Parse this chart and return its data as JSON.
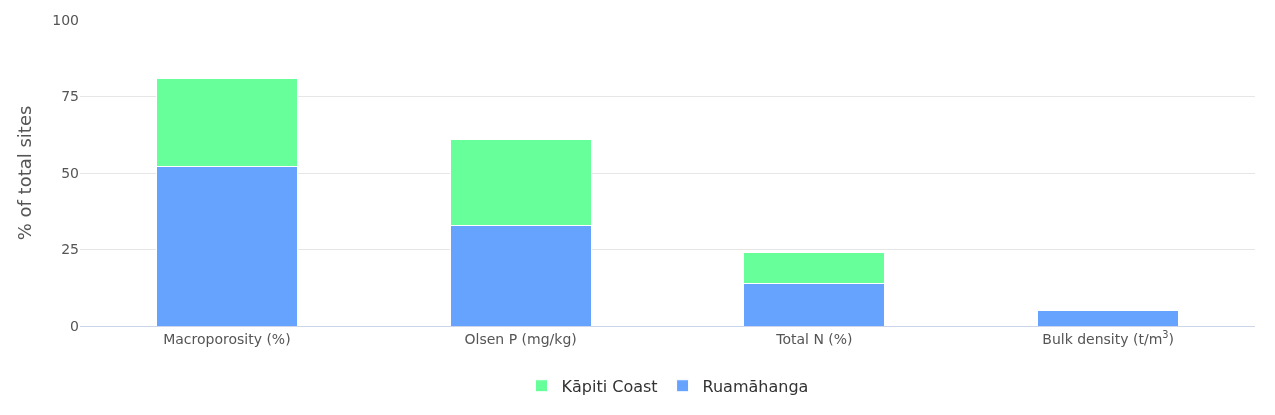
{
  "chart_data": {
    "type": "bar",
    "stacked": true,
    "ylabel": "% of total sites",
    "categories": [
      "Macroporosity (%)",
      "Olsen P (mg/kg)",
      "Total N (%)",
      "Bulk density (t/m$^{3}$)"
    ],
    "series": [
      {
        "name": "Ruamāhanga",
        "color": "#66a3ff",
        "values": [
          52,
          33,
          14,
          5
        ]
      },
      {
        "name": "Kāpiti Coast",
        "color": "#66ff99",
        "values": [
          29,
          28,
          10,
          null
        ]
      }
    ],
    "ylim": [
      0,
      100
    ],
    "yticks": [
      0,
      25,
      50,
      75,
      100
    ],
    "grid": "y",
    "legend": "bottom"
  }
}
